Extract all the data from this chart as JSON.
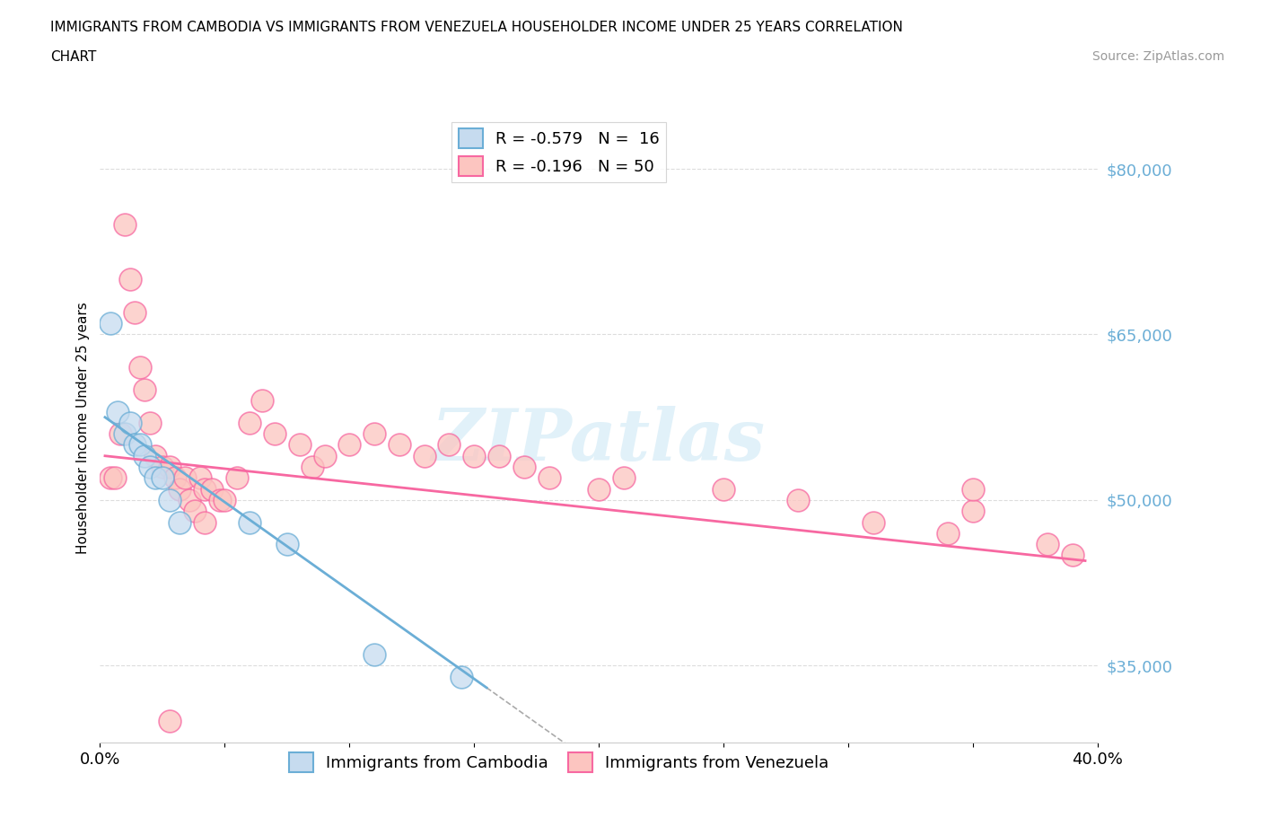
{
  "title_line1": "IMMIGRANTS FROM CAMBODIA VS IMMIGRANTS FROM VENEZUELA HOUSEHOLDER INCOME UNDER 25 YEARS CORRELATION",
  "title_line2": "CHART",
  "source": "Source: ZipAtlas.com",
  "ylabel": "Householder Income Under 25 years",
  "xlim": [
    0.0,
    0.4
  ],
  "ylim": [
    28000,
    85000
  ],
  "xticks": [
    0.0,
    0.05,
    0.1,
    0.15,
    0.2,
    0.25,
    0.3,
    0.35,
    0.4
  ],
  "xticklabels": [
    "0.0%",
    "",
    "",
    "",
    "",
    "",
    "",
    "",
    "40.0%"
  ],
  "ytick_values": [
    35000,
    50000,
    65000,
    80000
  ],
  "ytick_labels": [
    "$35,000",
    "$50,000",
    "$65,000",
    "$80,000"
  ],
  "cambodia_color": "#6baed6",
  "cambodia_fill": "#c6dbef",
  "venezuela_color": "#f768a1",
  "venezuela_fill": "#fcc5c0",
  "cambodia_R": -0.579,
  "cambodia_N": 16,
  "venezuela_R": -0.196,
  "venezuela_N": 50,
  "cambodia_x": [
    0.004,
    0.007,
    0.01,
    0.012,
    0.014,
    0.016,
    0.018,
    0.02,
    0.022,
    0.025,
    0.028,
    0.032,
    0.06,
    0.075,
    0.11,
    0.145
  ],
  "cambodia_y": [
    66000,
    58000,
    56000,
    57000,
    55000,
    55000,
    54000,
    53000,
    52000,
    52000,
    50000,
    48000,
    48000,
    46000,
    36000,
    34000
  ],
  "venezuela_x": [
    0.004,
    0.006,
    0.008,
    0.01,
    0.012,
    0.014,
    0.016,
    0.018,
    0.02,
    0.022,
    0.025,
    0.028,
    0.03,
    0.032,
    0.034,
    0.036,
    0.038,
    0.04,
    0.042,
    0.045,
    0.048,
    0.05,
    0.055,
    0.06,
    0.065,
    0.07,
    0.08,
    0.085,
    0.09,
    0.1,
    0.11,
    0.12,
    0.13,
    0.14,
    0.15,
    0.16,
    0.17,
    0.18,
    0.2,
    0.21,
    0.25,
    0.28,
    0.31,
    0.34,
    0.35,
    0.38,
    0.39,
    0.35,
    0.042,
    0.028
  ],
  "venezuela_y": [
    52000,
    52000,
    56000,
    75000,
    70000,
    67000,
    62000,
    60000,
    57000,
    54000,
    53000,
    53000,
    52000,
    51000,
    52000,
    50000,
    49000,
    52000,
    51000,
    51000,
    50000,
    50000,
    52000,
    57000,
    59000,
    56000,
    55000,
    53000,
    54000,
    55000,
    56000,
    55000,
    54000,
    55000,
    54000,
    54000,
    53000,
    52000,
    51000,
    52000,
    51000,
    50000,
    48000,
    47000,
    49000,
    46000,
    45000,
    51000,
    48000,
    30000
  ],
  "watermark_text": "ZIPatlas",
  "background_color": "#ffffff",
  "grid_color": "#dddddd",
  "legend_R_cambodia": "R = -0.579",
  "legend_N_cambodia": "N =  16",
  "legend_R_venezuela": "R = -0.196",
  "legend_N_venezuela": "N = 50",
  "cam_line_x0": 0.002,
  "cam_line_x1": 0.155,
  "cam_line_y0": 57500,
  "cam_line_y1": 33000,
  "ven_line_x0": 0.002,
  "ven_line_x1": 0.395,
  "ven_line_y0": 54000,
  "ven_line_y1": 44500
}
